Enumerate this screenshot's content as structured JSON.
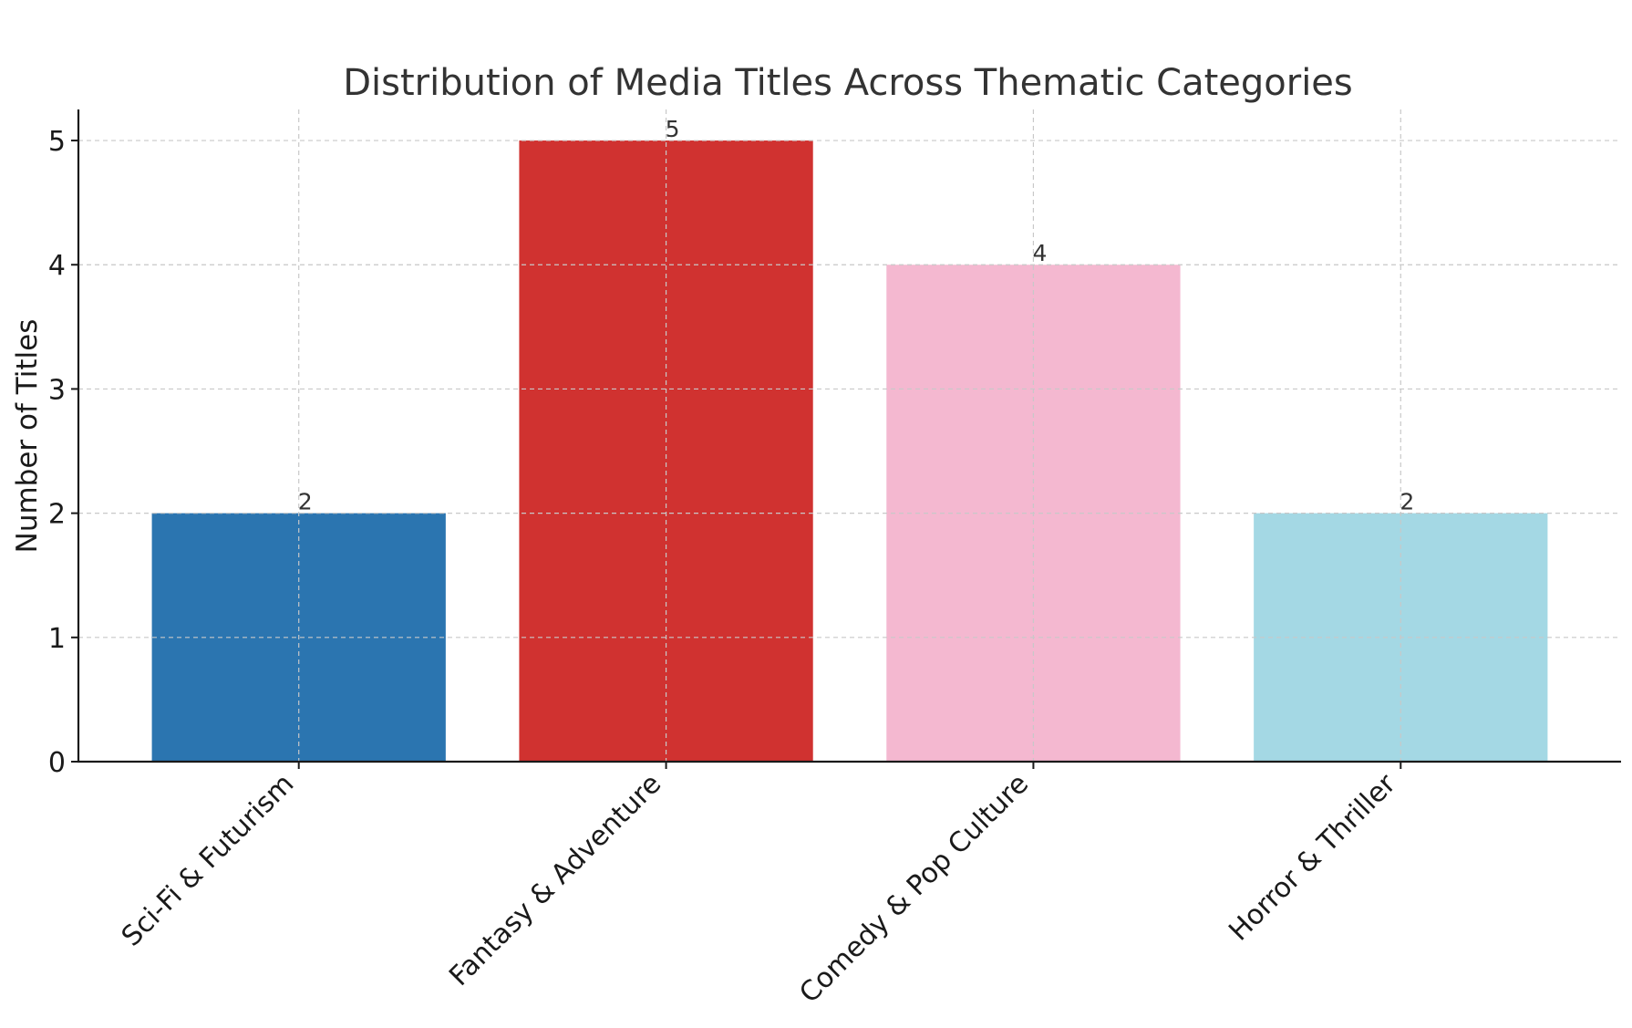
{
  "chart_data": {
    "type": "bar",
    "title": "Distribution of Media Titles Across Thematic Categories",
    "xlabel": "",
    "ylabel": "Number of Titles",
    "categories": [
      "Sci-Fi & Futurism",
      "Fantasy & Adventure",
      "Comedy & Pop Culture",
      "Horror & Thriller"
    ],
    "values": [
      2,
      5,
      4,
      2
    ],
    "data_labels": [
      "2",
      "5",
      "4",
      "2"
    ],
    "colors": [
      "#2b75b0",
      "#d03230",
      "#f4b8d0",
      "#a4d8e4"
    ],
    "ylim": [
      0,
      5.25
    ],
    "yticks": [
      0,
      1,
      2,
      3,
      4,
      5
    ],
    "ytick_labels": [
      "0",
      "1",
      "2",
      "3",
      "4",
      "5"
    ],
    "grid": true,
    "legend": "none"
  }
}
